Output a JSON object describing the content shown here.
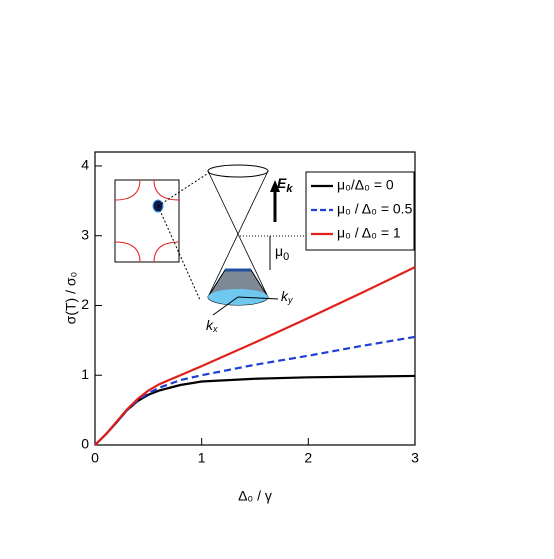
{
  "chart_data": {
    "type": "line",
    "xlabel": "Δ₀ / γ",
    "ylabel": "σ(T) / σ₀",
    "x": [
      0,
      0.1,
      0.2,
      0.3,
      0.4,
      0.5,
      0.6,
      0.8,
      1,
      1.5,
      2,
      2.5,
      3
    ],
    "series": [
      {
        "name": "μ₀/Δ₀ = 0",
        "color": "#000000",
        "dash": false,
        "values": [
          0,
          0.15,
          0.32,
          0.5,
          0.63,
          0.72,
          0.78,
          0.86,
          0.91,
          0.95,
          0.97,
          0.98,
          0.99
        ]
      },
      {
        "name": "μ₀ / Δ₀ = 0.5",
        "color": "#1f3fd6",
        "dash": true,
        "values": [
          0,
          0.15,
          0.32,
          0.5,
          0.64,
          0.74,
          0.82,
          0.93,
          1.0,
          1.15,
          1.28,
          1.42,
          1.55
        ]
      },
      {
        "name": "μ₀ / Δ₀ = 1",
        "color": "#e0201b",
        "dash": false,
        "values": [
          0,
          0.15,
          0.33,
          0.51,
          0.66,
          0.78,
          0.87,
          1.0,
          1.13,
          1.47,
          1.82,
          2.18,
          2.55
        ]
      }
    ],
    "xlim": [
      0,
      3
    ],
    "xticks": [
      0,
      1,
      2,
      3
    ],
    "ylim": [
      0,
      4.2
    ],
    "yticks": [
      0,
      1,
      2,
      3,
      4
    ],
    "legend": "upper right",
    "annotations": [
      {
        "text": "E",
        "sub": "k"
      },
      {
        "text": "μ",
        "sub": "0"
      },
      {
        "text": "k",
        "sub": "y"
      },
      {
        "text": "k",
        "sub": "x"
      }
    ]
  }
}
